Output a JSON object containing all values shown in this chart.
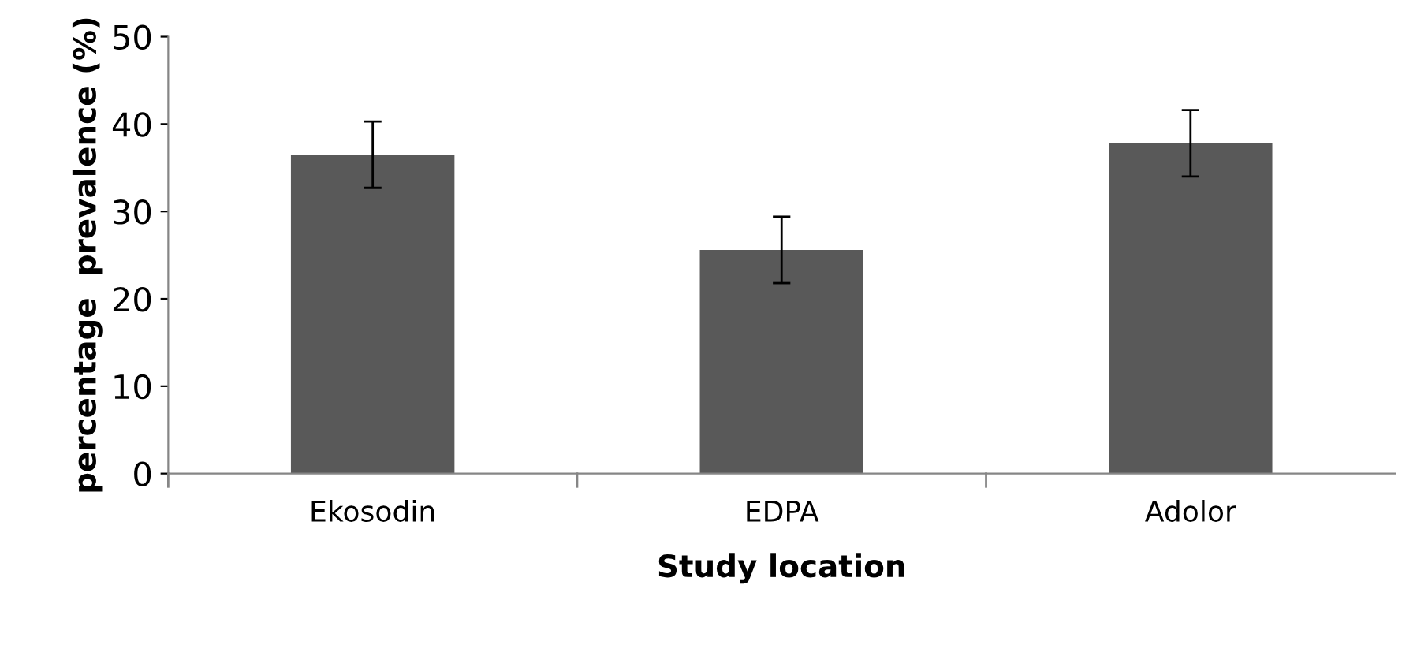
{
  "chart_data": {
    "type": "bar",
    "xlabel": "Study location",
    "ylabel": "percentage  prevalence (%)",
    "categories": [
      "Ekosodin",
      "EDPA",
      "Adolor"
    ],
    "values": [
      36.5,
      25.6,
      37.8
    ],
    "errors": [
      3.8,
      3.8,
      3.8
    ],
    "color": "#595959",
    "ylim": [
      0,
      50
    ],
    "yticks": [
      0,
      10,
      20,
      30,
      40,
      50
    ],
    "grid": false,
    "legend": false
  }
}
